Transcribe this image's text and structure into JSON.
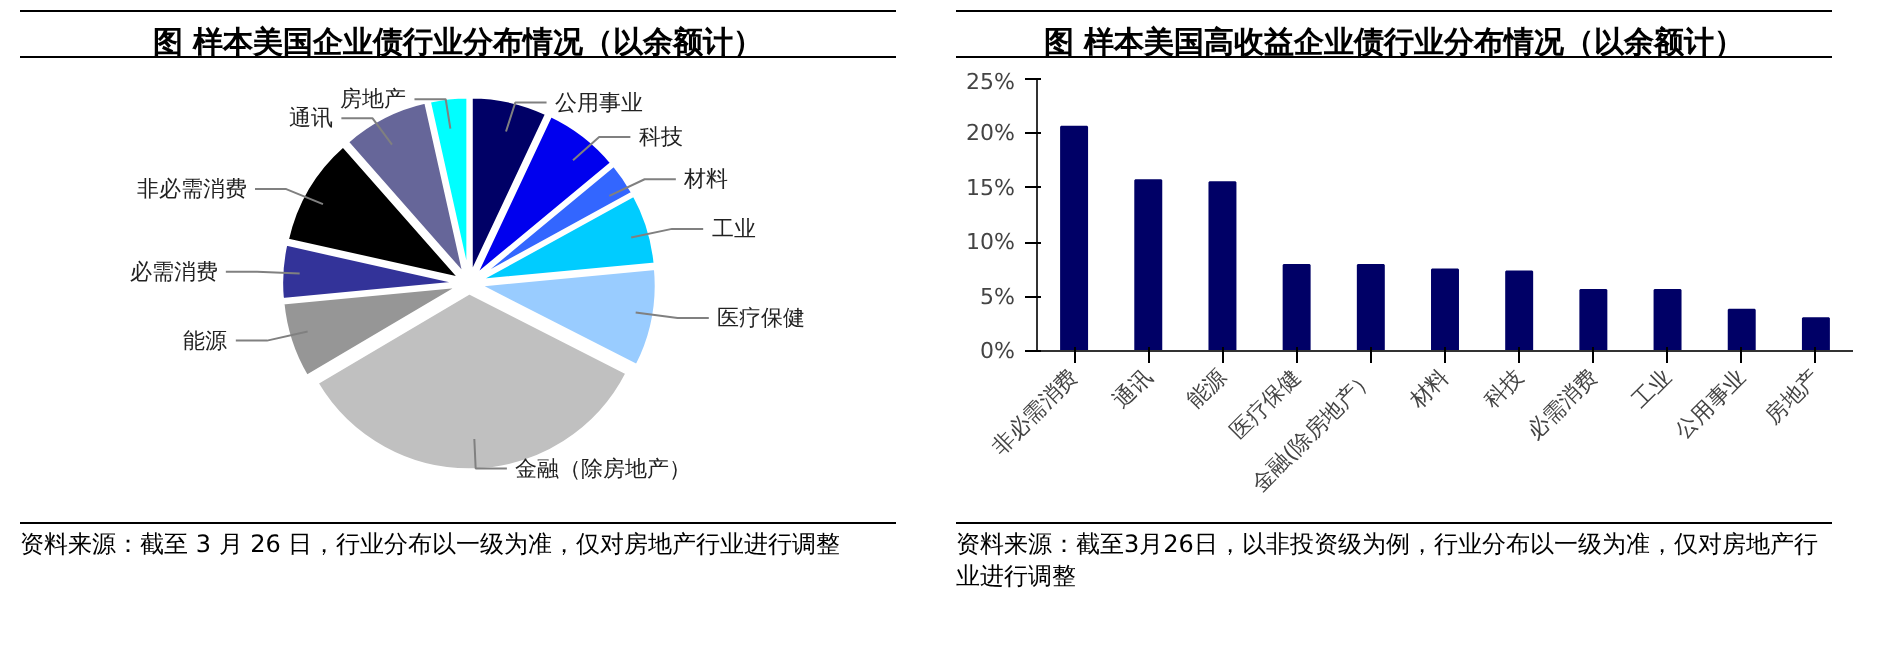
{
  "chart_data": [
    {
      "type": "pie",
      "title": "图  样本美国企业债行业分布情况（以余额计）",
      "categories": [
        "公用事业",
        "科技",
        "材料",
        "工业",
        "医疗保健",
        "金融（除房地产）",
        "能源",
        "必需消费",
        "非必需消费",
        "通讯",
        "房地产"
      ],
      "values": [
        7,
        7,
        3,
        6.5,
        9,
        34,
        7,
        5,
        10,
        8,
        3.5
      ],
      "colors": [
        "#000066",
        "#0000ee",
        "#3366ff",
        "#00ccff",
        "#99ccff",
        "#c0c0c0",
        "#969696",
        "#333399",
        "#000000",
        "#666699",
        "#00ffff"
      ],
      "annotations": [
        "资料来源：截至 3 月 26 日，行业分布以一级为准，仅对房地产行业进行调整"
      ]
    },
    {
      "type": "bar",
      "title": "图  样本美国高收益企业债行业分布情况（以余额计）",
      "categories": [
        "非必需消费",
        "通讯",
        "能源",
        "医疗保健",
        "金融(除房地产）",
        "材料",
        "科技",
        "必需消费",
        "工业",
        "公用事业",
        "房地产"
      ],
      "values": [
        20.6,
        15.7,
        15.5,
        7.9,
        7.9,
        7.5,
        7.3,
        5.6,
        5.6,
        3.8,
        3.0
      ],
      "color": "#000066",
      "ylim": [
        0,
        25
      ],
      "yticks": [
        {
          "value": 0,
          "label": "0%"
        },
        {
          "value": 5,
          "label": "5%"
        },
        {
          "value": 10,
          "label": "10%"
        },
        {
          "value": 15,
          "label": "15%"
        },
        {
          "value": 20,
          "label": "20%"
        },
        {
          "value": 25,
          "label": "25%"
        }
      ],
      "grid": false,
      "annotations": [
        "资料来源：截至3月26日，以非投资级为例，行业分布以一级为准，仅对房地产行业进行调整"
      ]
    }
  ]
}
